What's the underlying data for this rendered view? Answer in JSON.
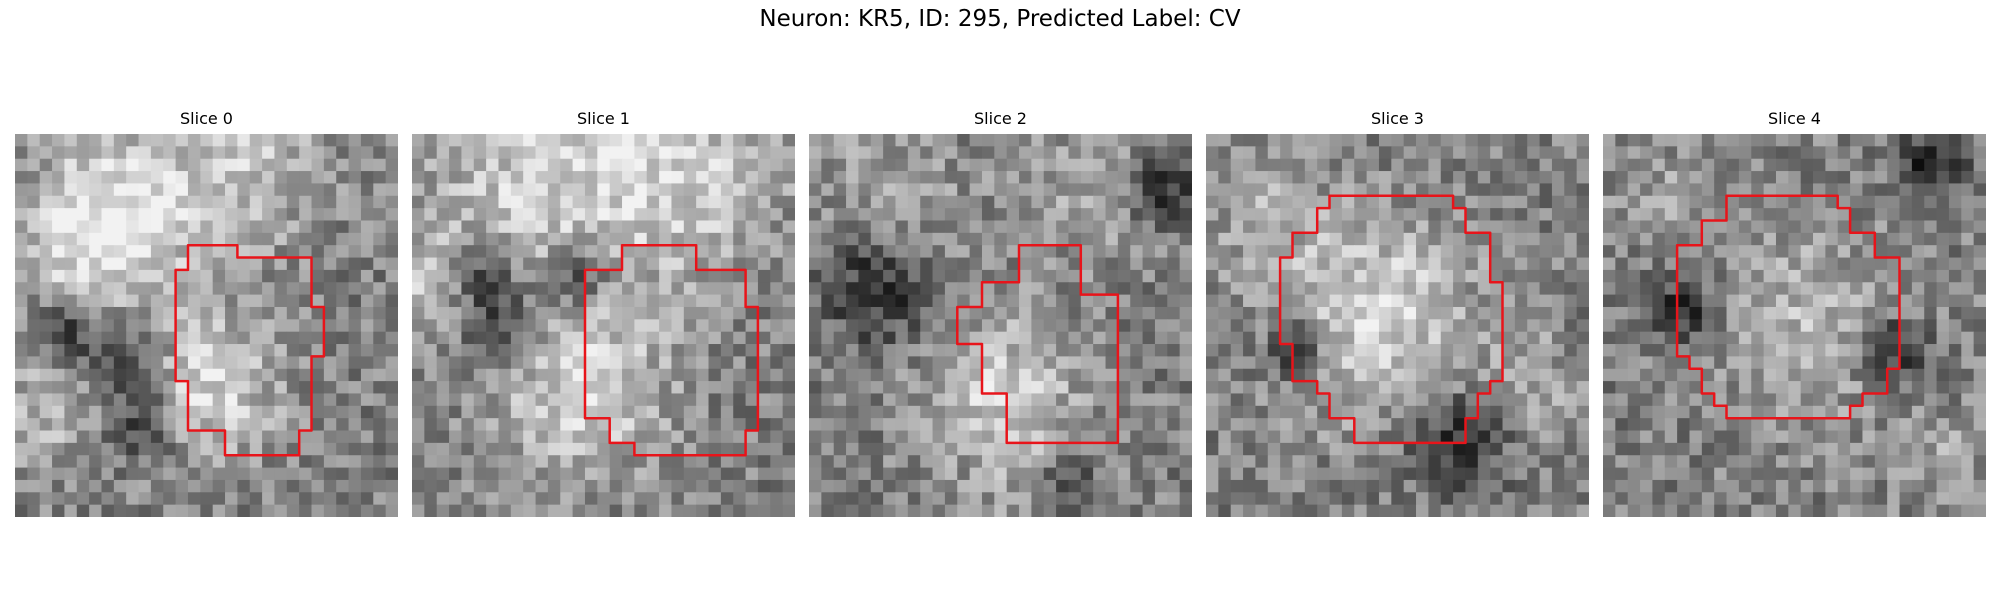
{
  "figure": {
    "title": "Neuron: KR5, ID: 295, Predicted Label: CV"
  },
  "panels": [
    {
      "title": "Slice 0"
    },
    {
      "title": "Slice 1"
    },
    {
      "title": "Slice 2"
    },
    {
      "title": "Slice 3"
    },
    {
      "title": "Slice 4"
    }
  ],
  "colors": {
    "contour": "#e8141a",
    "background": "#ffffff"
  }
}
